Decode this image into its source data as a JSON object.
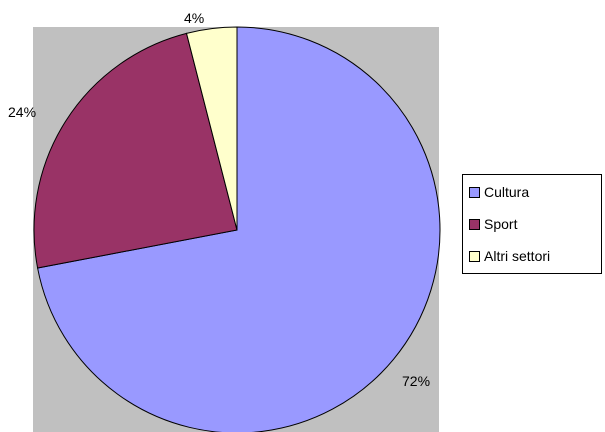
{
  "chart_data": {
    "type": "pie",
    "categories": [
      "Cultura",
      "Sport",
      "Altri settori"
    ],
    "values": [
      72,
      24,
      4
    ],
    "labels": [
      "72%",
      "24%",
      "4%"
    ],
    "colors": [
      "#9999ff",
      "#993366",
      "#ffffcc"
    ],
    "plot_background": "#c0c0c0",
    "legend_position": "right",
    "start_angle": "12 o'clock, clockwise"
  }
}
